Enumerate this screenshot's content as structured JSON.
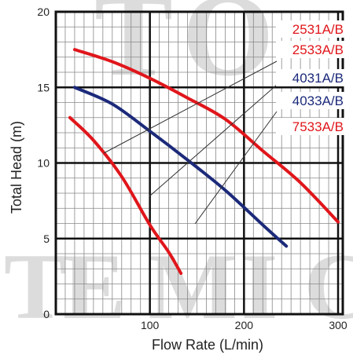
{
  "chart_data": {
    "type": "line",
    "title": "",
    "xlabel": "Flow Rate (L/min)",
    "ylabel": "Total Head (m)",
    "xlim": [
      0,
      305
    ],
    "ylim": [
      0,
      20
    ],
    "x_ticks": [
      100,
      200,
      300
    ],
    "x_tick_labels": [
      "100",
      "200",
      "300"
    ],
    "y_ticks": [
      0,
      5,
      10,
      15,
      20
    ],
    "y_tick_labels": [
      "0",
      "5",
      "10",
      "15",
      "20"
    ],
    "grid": true,
    "legend": [
      "2531A/B",
      "2533A/B",
      "4031A/B",
      "4033A/B",
      "7533A/B"
    ],
    "legend_colors": [
      "#e0161b",
      "#e0161b",
      "#1c2a7a",
      "#1c2a7a",
      "#e0161b"
    ],
    "legend_position": "top-right",
    "series": [
      {
        "color": "#e0161b",
        "x": [
          20,
          60,
          100,
          140,
          180,
          220,
          260,
          300
        ],
        "y": [
          17.5,
          16.7,
          15.6,
          14.3,
          12.9,
          10.8,
          8.7,
          6.1
        ]
      },
      {
        "color": "#1c2a7a",
        "x": [
          20,
          60,
          100,
          140,
          180,
          220,
          245
        ],
        "y": [
          15.0,
          13.9,
          12.1,
          10.2,
          8.2,
          5.9,
          4.5
        ]
      },
      {
        "color": "#e0161b",
        "x": [
          15,
          40,
          70,
          100,
          120,
          133
        ],
        "y": [
          13.0,
          11.5,
          9.1,
          5.9,
          4.1,
          2.7
        ]
      }
    ],
    "watermark": "TOTEMIC"
  }
}
